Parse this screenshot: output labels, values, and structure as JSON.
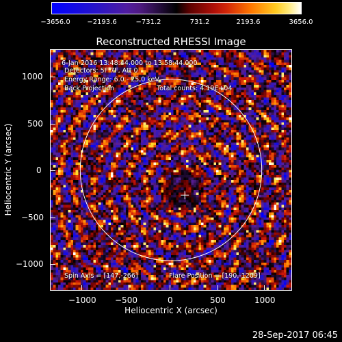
{
  "colorbar": {
    "labels": [
      "−3656.0",
      "−2193.6",
      "−731.2",
      "731.2",
      "2193.6",
      "3656.0"
    ],
    "min": -3656.0,
    "max": 3656.0
  },
  "title": "Reconstructed RHESSI Image",
  "info": {
    "time": "6-Jan-2016 13:48:44.000 to 13:58:44.000",
    "detectors": "Detectors: 5F 7F, Att 0",
    "energy": "Energy Range: 6.0 - 25.0 keV",
    "method": "Back Projection",
    "counts": "Total counts: 4.19E+04",
    "spin_axis": "Spin Axis = [147,-266]",
    "flare_position": "Flare Position = [190,-1209]"
  },
  "axes": {
    "xlabel": "Heliocentric X (arcsec)",
    "ylabel": "Heliocentric Y (arcsec)",
    "xticks": [
      "−1000",
      "−500",
      "0",
      "500",
      "1000"
    ],
    "yticks": [
      "1000",
      "500",
      "0",
      "−500",
      "−1000"
    ]
  },
  "timestamp": "28-Sep-2017 06:45",
  "colors": {
    "background": "#000000",
    "circle": "#ffffff"
  },
  "chart_data": {
    "type": "heatmap",
    "title": "Reconstructed RHESSI Image",
    "xlabel": "Heliocentric X (arcsec)",
    "ylabel": "Heliocentric Y (arcsec)",
    "xlim": [
      -1280,
      1280
    ],
    "ylim": [
      -1270,
      1270
    ],
    "xticks": [
      -1000,
      -500,
      0,
      500,
      1000
    ],
    "yticks": [
      -1000,
      -500,
      0,
      500,
      1000
    ],
    "colorbar_range": [
      -3656.0,
      3656.0
    ],
    "colorbar_ticks": [
      -3656.0,
      -2193.6,
      -731.2,
      731.2,
      2193.6,
      3656.0
    ],
    "solar_disk": {
      "center": [
        0,
        0
      ],
      "radius_arcsec": 965
    },
    "spin_axis": [
      147,
      -266
    ],
    "flare_position": [
      190,
      -1209
    ]
  }
}
